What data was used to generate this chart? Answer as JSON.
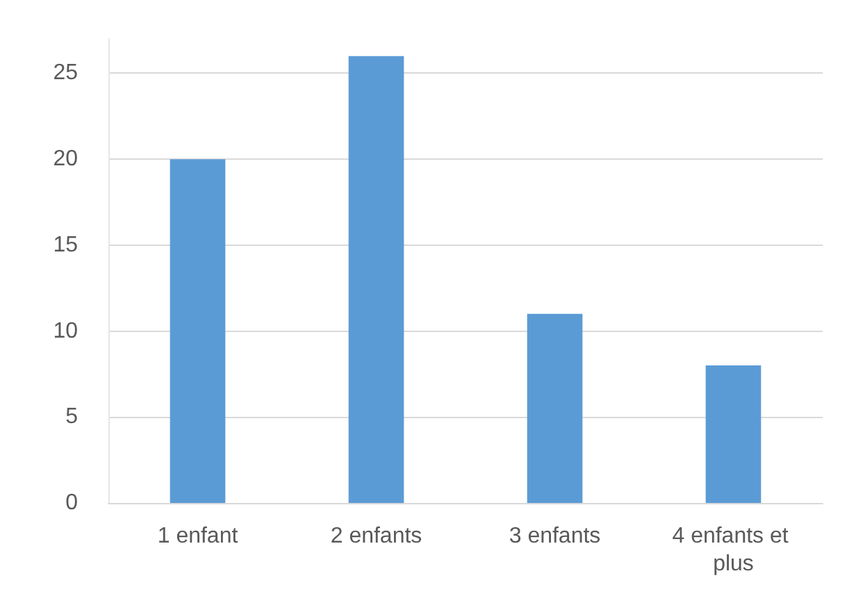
{
  "chart_data": {
    "type": "bar",
    "categories": [
      "1 enfant",
      "2 enfants",
      "3 enfants",
      "4 enfants et plus"
    ],
    "values": [
      20,
      26,
      11,
      8
    ],
    "color": "#5b9bd5",
    "ylim": [
      0,
      27
    ],
    "yticks": [
      0,
      5,
      10,
      15,
      20,
      25
    ],
    "grid": "y"
  }
}
